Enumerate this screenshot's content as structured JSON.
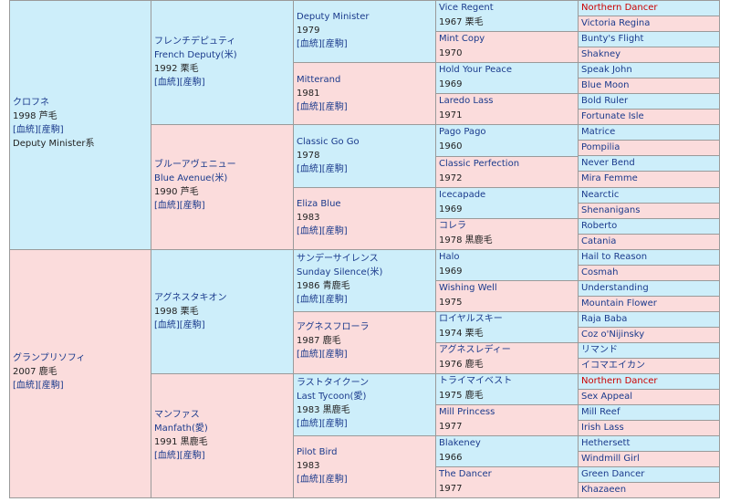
{
  "pedigree": {
    "gen1": [
      {
        "name_ja": "クロフネ",
        "year": "1998 芦毛",
        "links": "[血統][産駒]",
        "line": "Deputy Minister系"
      },
      {
        "name_ja": "グランプリソフィ",
        "year": "2007 鹿毛",
        "links": "[血統][産駒]"
      }
    ],
    "gen2": [
      {
        "name_ja": "フレンチデピュティ",
        "name_en": "French Deputy(米)",
        "year": "1992 栗毛",
        "links": "[血統][産駒]"
      },
      {
        "name_ja": "ブルーアヴェニュー",
        "name_en": "Blue Avenue(米)",
        "year": "1990 芦毛",
        "links": "[血統][産駒]"
      },
      {
        "name_ja": "アグネスタキオン",
        "year": "1998 栗毛",
        "links": "[血統][産駒]"
      },
      {
        "name_ja": "マンファス",
        "name_en": "Manfath(愛)",
        "year": "1991 黒鹿毛",
        "links": "[血統][産駒]"
      }
    ],
    "gen3": [
      {
        "name": "Deputy Minister",
        "year": "1979",
        "links": "[血統][産駒]"
      },
      {
        "name": "Mitterand",
        "year": "1981",
        "links": "[血統][産駒]"
      },
      {
        "name": "Classic Go Go",
        "year": "1978",
        "links": "[血統][産駒]"
      },
      {
        "name": "Eliza Blue",
        "year": "1983",
        "links": "[血統][産駒]"
      },
      {
        "name": "サンデーサイレンス",
        "name_en": "Sunday Silence(米)",
        "year": "1986 青鹿毛",
        "links": "[血統][産駒]"
      },
      {
        "name": "アグネスフローラ",
        "year": "1987 鹿毛",
        "links": "[血統][産駒]"
      },
      {
        "name": "ラストタイクーン",
        "name_en": "Last Tycoon(愛)",
        "year": "1983 黒鹿毛",
        "links": "[血統][産駒]"
      },
      {
        "name": "Pilot Bird",
        "year": "1983",
        "links": "[血統][産駒]"
      }
    ],
    "gen4": [
      {
        "name": "Vice Regent",
        "year": "1967 栗毛"
      },
      {
        "name": "Mint Copy",
        "year": "1970"
      },
      {
        "name": "Hold Your Peace",
        "year": "1969"
      },
      {
        "name": "Laredo Lass",
        "year": "1971"
      },
      {
        "name": "Pago Pago",
        "year": "1960"
      },
      {
        "name": "Classic Perfection",
        "year": "1972"
      },
      {
        "name": "Icecapade",
        "year": "1969"
      },
      {
        "name": "コレラ",
        "year": "1978 黒鹿毛"
      },
      {
        "name": "Halo",
        "year": "1969"
      },
      {
        "name": "Wishing Well",
        "year": "1975"
      },
      {
        "name": "ロイヤルスキー",
        "year": "1974 栗毛"
      },
      {
        "name": "アグネスレディー",
        "year": "1976 鹿毛"
      },
      {
        "name": "トライマイベスト",
        "year": "1975 鹿毛"
      },
      {
        "name": "Mill Princess",
        "year": "1977"
      },
      {
        "name": "Blakeney",
        "year": "1966"
      },
      {
        "name": "The Dancer",
        "year": "1977"
      }
    ],
    "gen5": [
      "Northern Dancer",
      "Victoria Regina",
      "Bunty's Flight",
      "Shakney",
      "Speak John",
      "Blue Moon",
      "Bold Ruler",
      "Fortunate Isle",
      "Matrice",
      "Pompilia",
      "Never Bend",
      "Mira Femme",
      "Nearctic",
      "Shenanigans",
      "Roberto",
      "Catania",
      "Hail to Reason",
      "Cosmah",
      "Understanding",
      "Mountain Flower",
      "Raja Baba",
      "Coz o'Nijinsky",
      "リマンド",
      "イコマエイカン",
      "Northern Dancer",
      "Sex Appeal",
      "Mill Reef",
      "Irish Lass",
      "Hethersett",
      "Windmill Girl",
      "Green Dancer",
      "Khazaeen"
    ],
    "colors": {
      "male_bg": "#cdeefa",
      "female_bg": "#fbdcdc",
      "border": "#9a9a9a",
      "link": "#1a3a8c",
      "highlight": "#cc0000"
    }
  }
}
